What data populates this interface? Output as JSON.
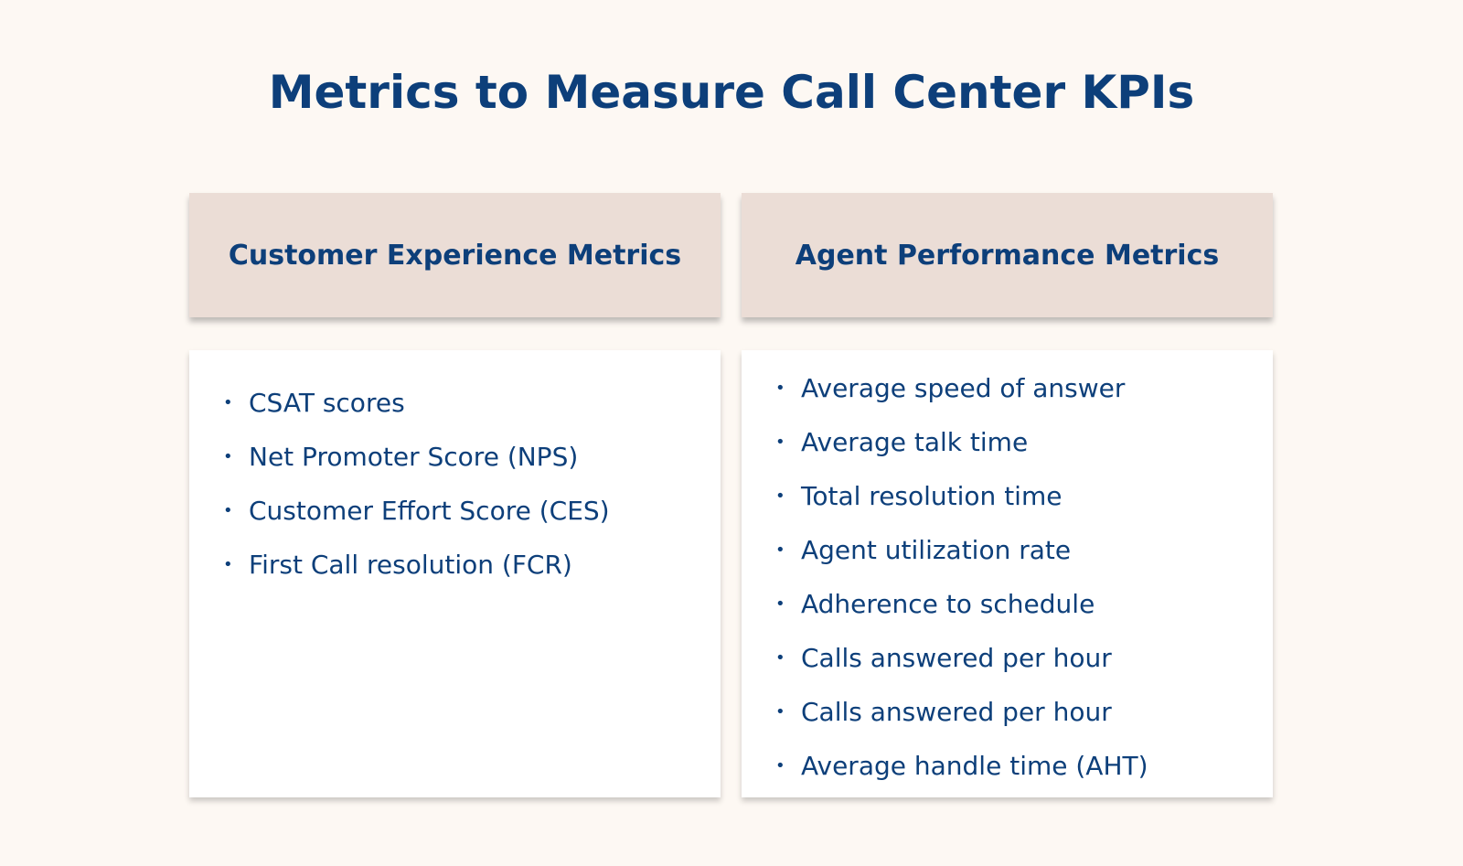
{
  "title": "Metrics to Measure Call Center KPIs",
  "columns": [
    {
      "heading": "Customer Experience Metrics",
      "items": [
        "CSAT scores",
        "Net Promoter Score (NPS)",
        "Customer Effort Score (CES)",
        "First Call resolution (FCR)"
      ]
    },
    {
      "heading": "Agent Performance Metrics",
      "items": [
        "Average speed of answer",
        "Average talk time",
        "Total resolution time",
        "Agent utilization rate",
        "Adherence to schedule",
        "Calls answered per hour",
        "Calls answered per hour",
        "Average handle time (AHT)"
      ]
    }
  ]
}
